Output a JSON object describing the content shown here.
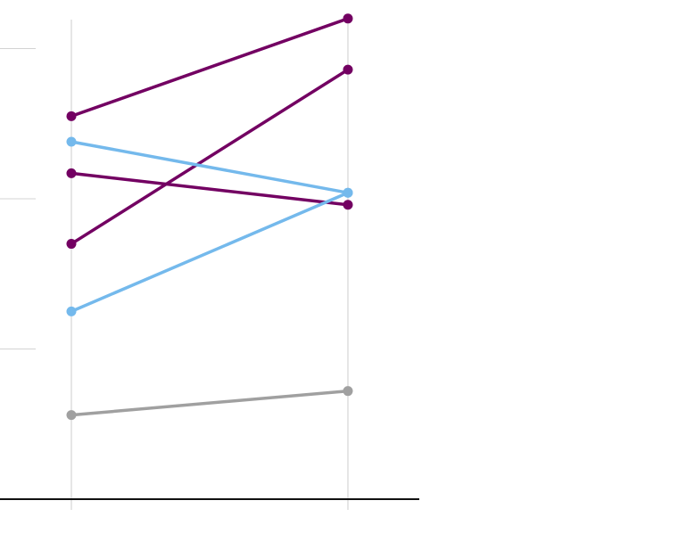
{
  "chart_data": {
    "type": "line",
    "title": "",
    "xlabel": "",
    "ylabel": "",
    "categories": [
      "",
      ""
    ],
    "ylim": [
      0,
      3.25
    ],
    "grid": true,
    "legend": "none",
    "y_gridlines": [
      1,
      2,
      3
    ],
    "series": [
      {
        "values": [
          2.55,
          3.2
        ],
        "color": "#730062"
      },
      {
        "values": [
          1.7,
          2.86
        ],
        "color": "#730062"
      },
      {
        "values": [
          2.17,
          1.96
        ],
        "color": "#730062"
      },
      {
        "values": [
          2.38,
          2.04
        ],
        "color": "#74b9ec"
      },
      {
        "values": [
          1.25,
          2.04
        ],
        "color": "#74b9ec"
      },
      {
        "values": [
          0.56,
          0.72
        ],
        "color": "#a0a0a0"
      }
    ]
  }
}
